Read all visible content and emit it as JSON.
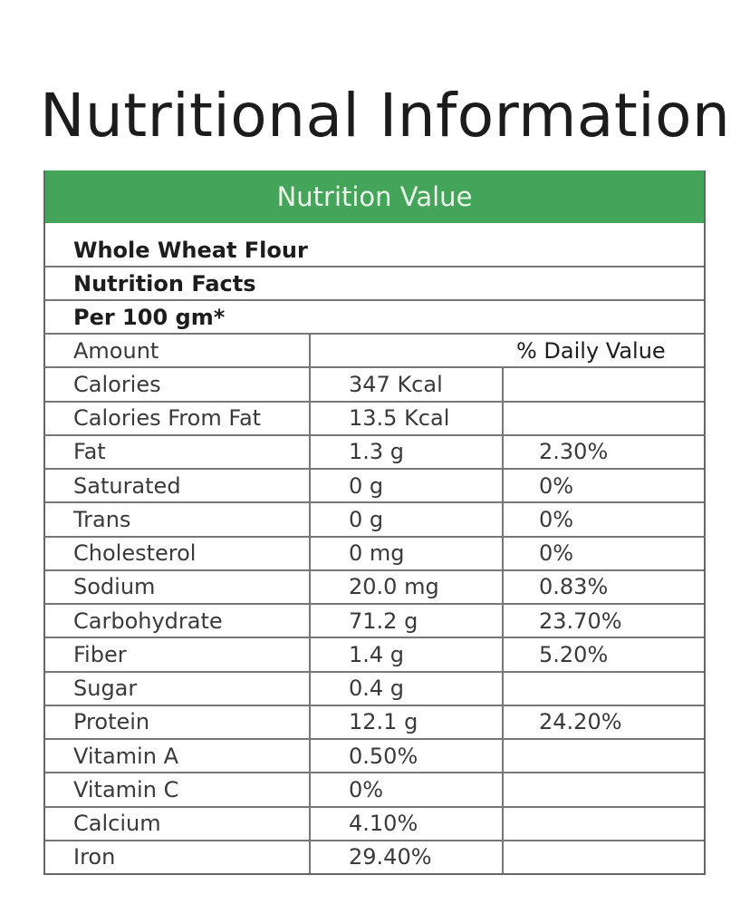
{
  "title": "Nutritional Information",
  "header": "Nutrition Value",
  "product": "Whole Wheat Flour",
  "facts_label": "Nutrition Facts",
  "serving": "Per 100 gm*",
  "columns": {
    "amount": "Amount",
    "daily_value": "% Daily Value"
  },
  "rows": [
    {
      "name": "Calories",
      "amount": "347 Kcal",
      "dv": ""
    },
    {
      "name": "Calories From Fat",
      "amount": "13.5 Kcal",
      "dv": ""
    },
    {
      "name": "Fat",
      "amount": "1.3 g",
      "dv": "2.30%"
    },
    {
      "name": "Saturated",
      "amount": "0 g",
      "dv": "0%"
    },
    {
      "name": "Trans",
      "amount": "0 g",
      "dv": "0%"
    },
    {
      "name": "Cholesterol",
      "amount": "0 mg",
      "dv": "0%"
    },
    {
      "name": "Sodium",
      "amount": "20.0 mg",
      "dv": "0.83%"
    },
    {
      "name": "Carbohydrate",
      "amount": "71.2 g",
      "dv": "23.70%"
    },
    {
      "name": "Fiber",
      "amount": "1.4 g",
      "dv": "5.20%"
    },
    {
      "name": "Sugar",
      "amount": "0.4 g",
      "dv": ""
    },
    {
      "name": "Protein",
      "amount": "12.1 g",
      "dv": "24.20%"
    },
    {
      "name": "Vitamin A",
      "amount": "0.50%",
      "dv": ""
    },
    {
      "name": "Vitamin C",
      "amount": "0%",
      "dv": ""
    },
    {
      "name": "Calcium",
      "amount": "4.10%",
      "dv": ""
    },
    {
      "name": "Iron",
      "amount": "29.40%",
      "dv": ""
    }
  ],
  "colors": {
    "header_bg": "#44a55a"
  }
}
